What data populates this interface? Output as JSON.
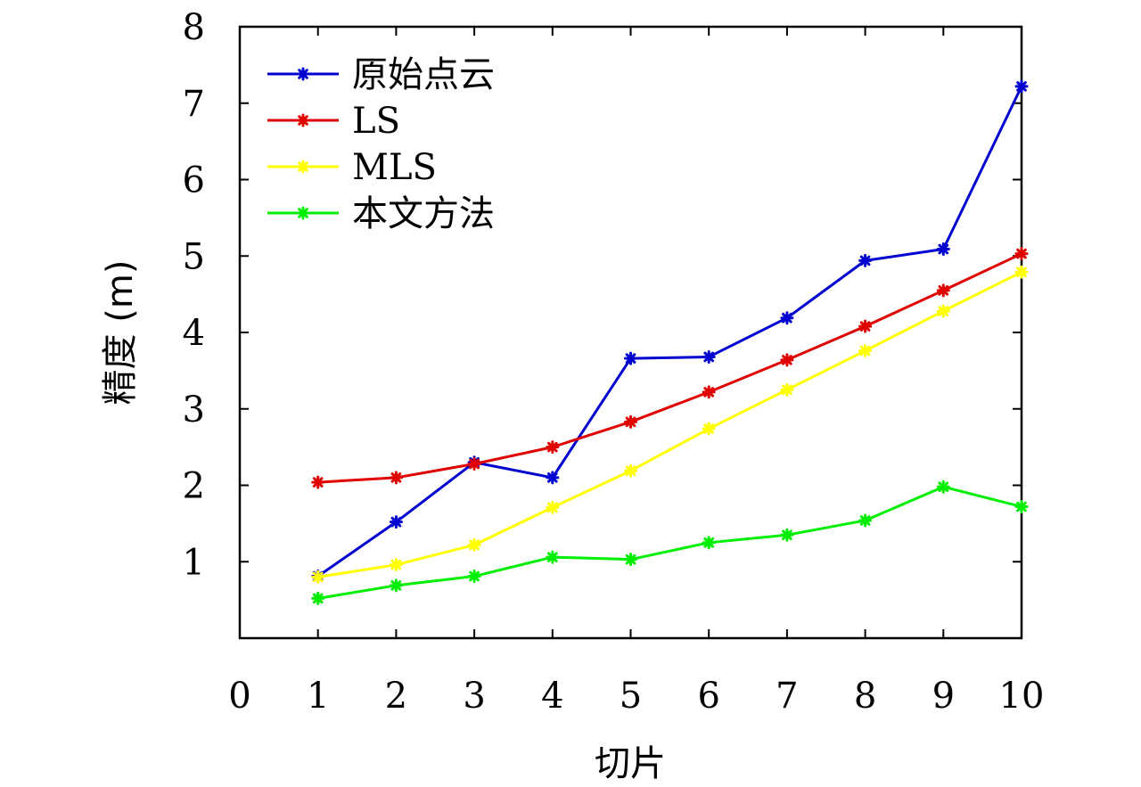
{
  "chart_data": {
    "type": "line",
    "title": "",
    "xlabel": "切片",
    "ylabel": "精度 (m)",
    "xlim": [
      0,
      10
    ],
    "ylim": [
      0,
      8
    ],
    "x_ticks": [
      "0",
      "1",
      "2",
      "3",
      "4",
      "5",
      "6",
      "7",
      "8",
      "9",
      "10"
    ],
    "y_ticks": [
      "1",
      "2",
      "3",
      "4",
      "5",
      "6",
      "7",
      "8"
    ],
    "x": [
      1,
      2,
      3,
      4,
      5,
      6,
      7,
      8,
      9,
      10
    ],
    "grid": false,
    "legend_position": "top-left",
    "series": [
      {
        "name": "原始点云",
        "color": "#0000d0",
        "values": [
          0.81,
          1.52,
          2.3,
          2.1,
          3.66,
          3.68,
          4.19,
          4.94,
          5.09,
          7.22
        ]
      },
      {
        "name": "LS",
        "color": "#e00000",
        "values": [
          2.04,
          2.1,
          2.28,
          2.5,
          2.83,
          3.22,
          3.64,
          4.08,
          4.55,
          5.03
        ]
      },
      {
        "name": "MLS",
        "color": "#ffff00",
        "values": [
          0.8,
          0.96,
          1.22,
          1.71,
          2.19,
          2.74,
          3.25,
          3.76,
          4.28,
          4.79
        ]
      },
      {
        "name": "本文方法",
        "color": "#00ee00",
        "values": [
          0.52,
          0.69,
          0.81,
          1.06,
          1.03,
          1.25,
          1.35,
          1.54,
          1.98,
          1.72
        ]
      }
    ]
  }
}
